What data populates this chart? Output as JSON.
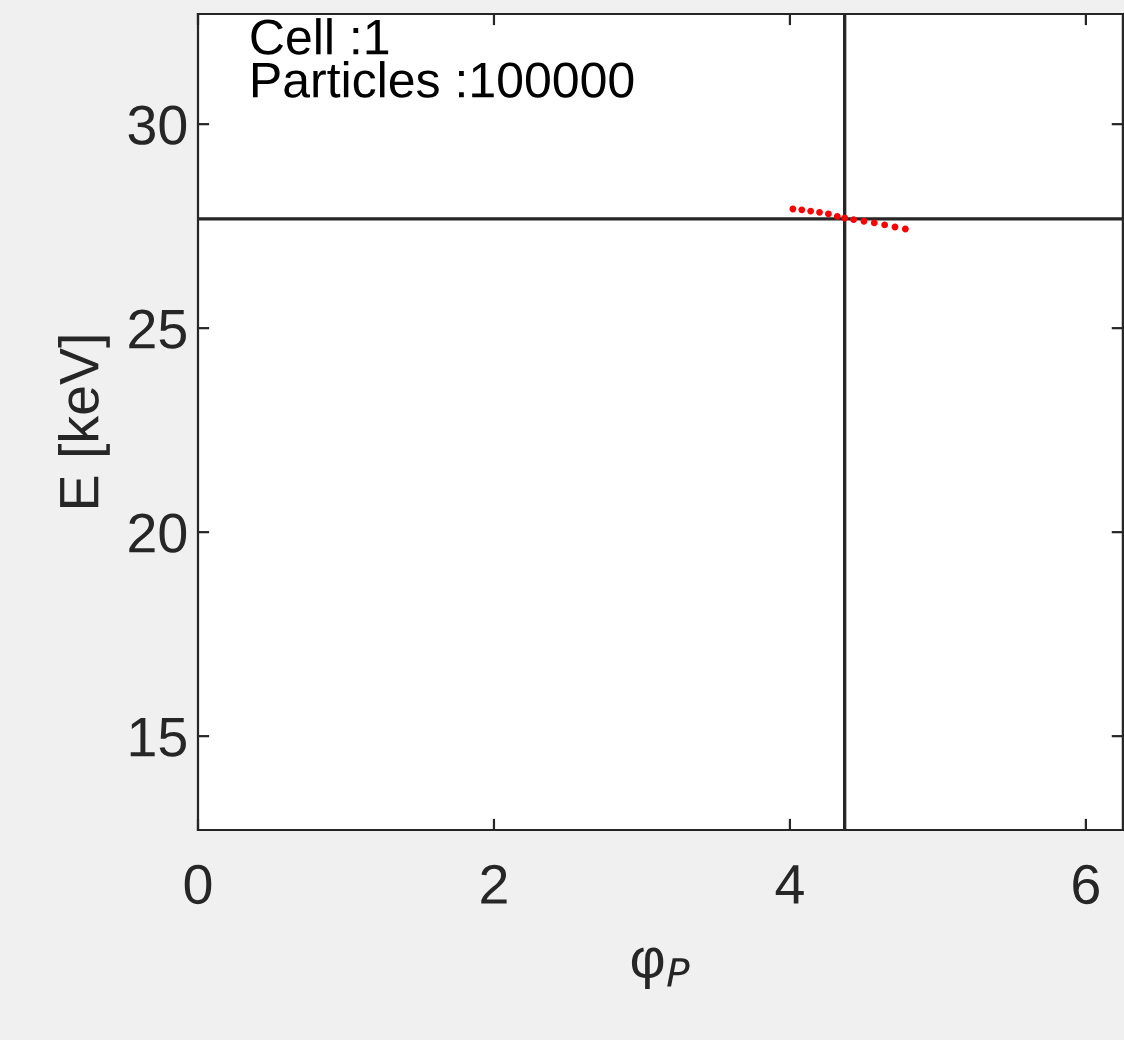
{
  "chart_data": {
    "type": "scatter",
    "xlabel": "φ$_{P}$",
    "ylabel": "E [keV]",
    "annotations": [
      "Cell :1",
      "Particles :100000"
    ],
    "series": [
      {
        "color": "#ff0000",
        "marker": "circle",
        "x": [
          4.02,
          4.08,
          4.14,
          4.2,
          4.26,
          4.32,
          4.37,
          4.43,
          4.5,
          4.57,
          4.64,
          4.71,
          4.78
        ],
        "values": [
          27.92,
          27.9,
          27.87,
          27.84,
          27.8,
          27.74,
          27.7,
          27.66,
          27.62,
          27.58,
          27.53,
          27.48,
          27.43
        ]
      }
    ],
    "ref_lines": [
      {
        "axis": "x",
        "value": 4.37,
        "color": "#262626"
      },
      {
        "axis": "y",
        "value": 27.68,
        "color": "#262626"
      }
    ],
    "xlim": [
      0,
      6.25
    ],
    "ylim": [
      12.7,
      32.7
    ],
    "xticks": [
      0,
      2,
      4,
      6
    ],
    "yticks": [
      15,
      20,
      25,
      30
    ],
    "grid": false
  }
}
